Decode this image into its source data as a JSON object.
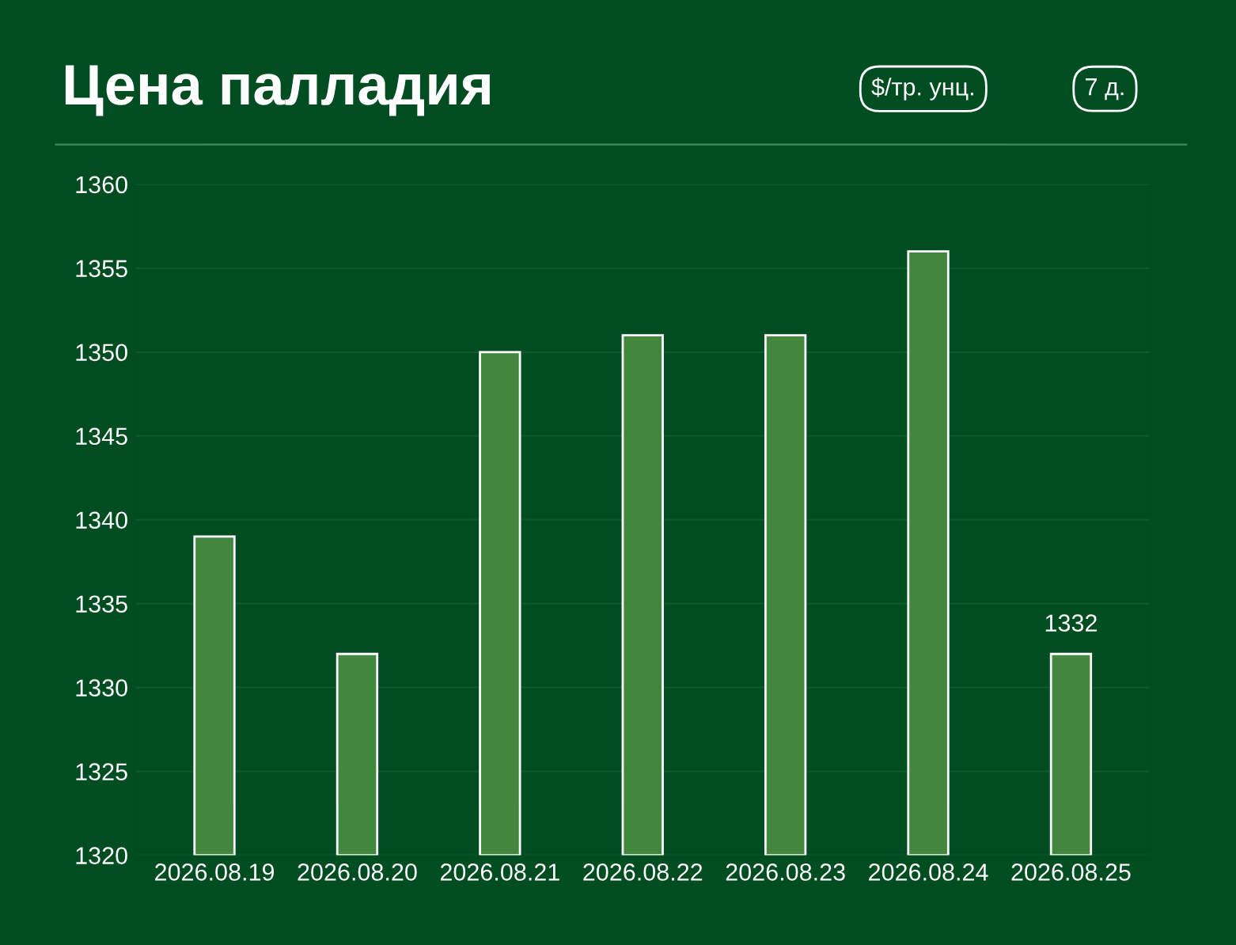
{
  "chart_data": {
    "type": "bar",
    "title": "Цена палладия",
    "annotations": [
      "$/тр. унц.",
      "7 д."
    ],
    "categories": [
      "2026.08.19",
      "2026.08.20",
      "2026.08.21",
      "2026.08.22",
      "2026.08.23",
      "2026.08.24",
      "2026.08.25"
    ],
    "values": [
      1339,
      1332,
      1350,
      1351,
      1351,
      1356,
      1332
    ],
    "value_labels": [
      null,
      null,
      null,
      null,
      null,
      null,
      "1332"
    ],
    "color": "#43873f",
    "ylim": [
      1320,
      1360
    ],
    "yticks": [
      1320,
      1325,
      1330,
      1335,
      1340,
      1345,
      1350,
      1355,
      1360
    ],
    "grid": "y"
  }
}
